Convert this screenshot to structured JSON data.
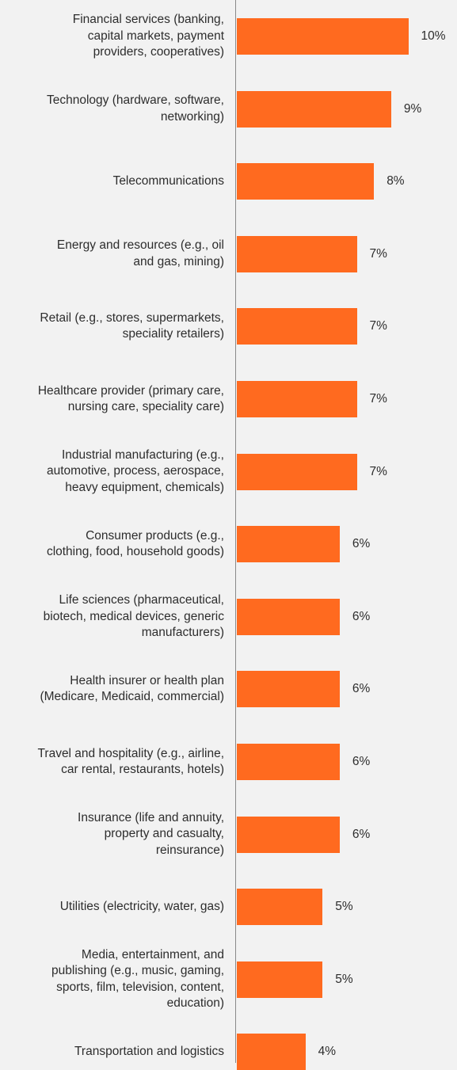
{
  "chart_data": {
    "type": "bar",
    "orientation": "horizontal",
    "bar_color": "#ff6a1f",
    "grid": false,
    "categories": [
      "Financial services (banking,\ncapital markets, payment\nproviders, cooperatives)",
      "Technology (hardware, software,\nnetworking)",
      "Telecommunications",
      "Energy and resources (e.g., oil\nand gas, mining)",
      "Retail (e.g., stores, supermarkets,\nspeciality retailers)",
      "Healthcare provider (primary care,\nnursing care, speciality care)",
      "Industrial manufacturing (e.g.,\nautomotive, process, aerospace,\nheavy equipment, chemicals)",
      "Consumer products (e.g.,\nclothing, food, household goods)",
      "Life sciences (pharmaceutical,\nbiotech, medical devices, generic\nmanufacturers)",
      "Health insurer or health plan\n(Medicare, Medicaid, commercial)",
      "Travel and hospitality (e.g., airline,\ncar rental, restaurants, hotels)",
      "Insurance (life and annuity,\nproperty and casualty,\nreinsurance)",
      "Utilities (electricity, water, gas)",
      "Media, entertainment, and\npublishing (e.g., music, gaming,\nsports, film, television, content,\neducation)",
      "Transportation and logistics"
    ],
    "values": [
      10,
      9,
      8,
      7,
      7,
      7,
      7,
      6,
      6,
      6,
      6,
      6,
      5,
      5,
      4
    ],
    "value_labels": [
      "10%",
      "9%",
      "8%",
      "7%",
      "7%",
      "7%",
      "7%",
      "6%",
      "6%",
      "6%",
      "6%",
      "6%",
      "5%",
      "5%",
      "4%"
    ]
  }
}
